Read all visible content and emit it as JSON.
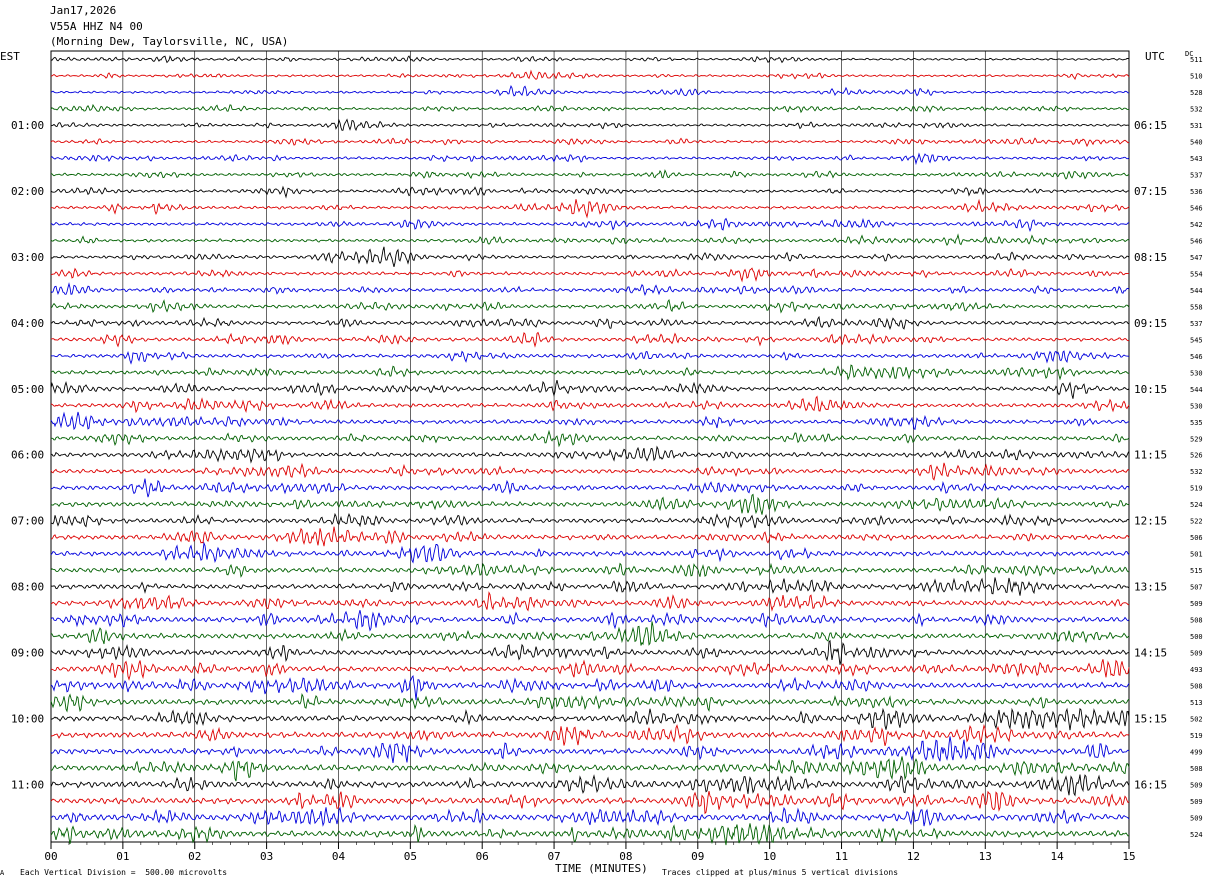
{
  "header": {
    "date": "Jan17,2026",
    "station": "V55A HHZ N4 00",
    "location": "(Morning Dew, Taylorsville, NC, USA)"
  },
  "left_timezone": "EST",
  "right_timezone": "UTC",
  "dc_label": "DC",
  "footer": {
    "corner_mark": "A",
    "division_note": "Each Vertical Division =  500.00 microvolts",
    "clip_note": "Traces clipped at plus/minus 5 vertical divisions"
  },
  "colors": {
    "trace_cycle": [
      "#000000",
      "#dd0000",
      "#0000dd",
      "#006000"
    ],
    "grid": "#000000"
  },
  "chart_data": {
    "type": "line",
    "xlabel": "TIME (MINUTES)",
    "xlim": [
      0,
      15
    ],
    "x_ticks": [
      "00",
      "01",
      "02",
      "03",
      "04",
      "05",
      "06",
      "07",
      "08",
      "09",
      "10",
      "11",
      "12",
      "13",
      "14",
      "15"
    ],
    "rows": 48,
    "minutes_per_row": 15,
    "left_hour_labels": [
      "01:00",
      "02:00",
      "03:00",
      "04:00",
      "05:00",
      "06:00",
      "07:00",
      "08:00",
      "09:00",
      "10:00",
      "11:00"
    ],
    "right_hour_labels": [
      "06:15",
      "07:15",
      "08:15",
      "09:15",
      "10:15",
      "11:15",
      "12:15",
      "13:15",
      "14:15",
      "15:15",
      "16:15"
    ],
    "hour_label_every_rows": 4,
    "hour_label_first_row": 4,
    "dc_offsets": [
      511,
      510,
      528,
      532,
      531,
      540,
      543,
      537,
      536,
      546,
      542,
      546,
      547,
      554,
      544,
      558,
      537,
      545,
      546,
      530,
      544,
      530,
      535,
      529,
      526,
      532,
      519,
      524,
      522,
      506,
      501,
      515,
      507,
      509,
      508,
      500,
      509,
      493,
      508,
      513,
      502,
      519,
      499,
      508,
      509,
      509,
      509,
      524
    ]
  }
}
